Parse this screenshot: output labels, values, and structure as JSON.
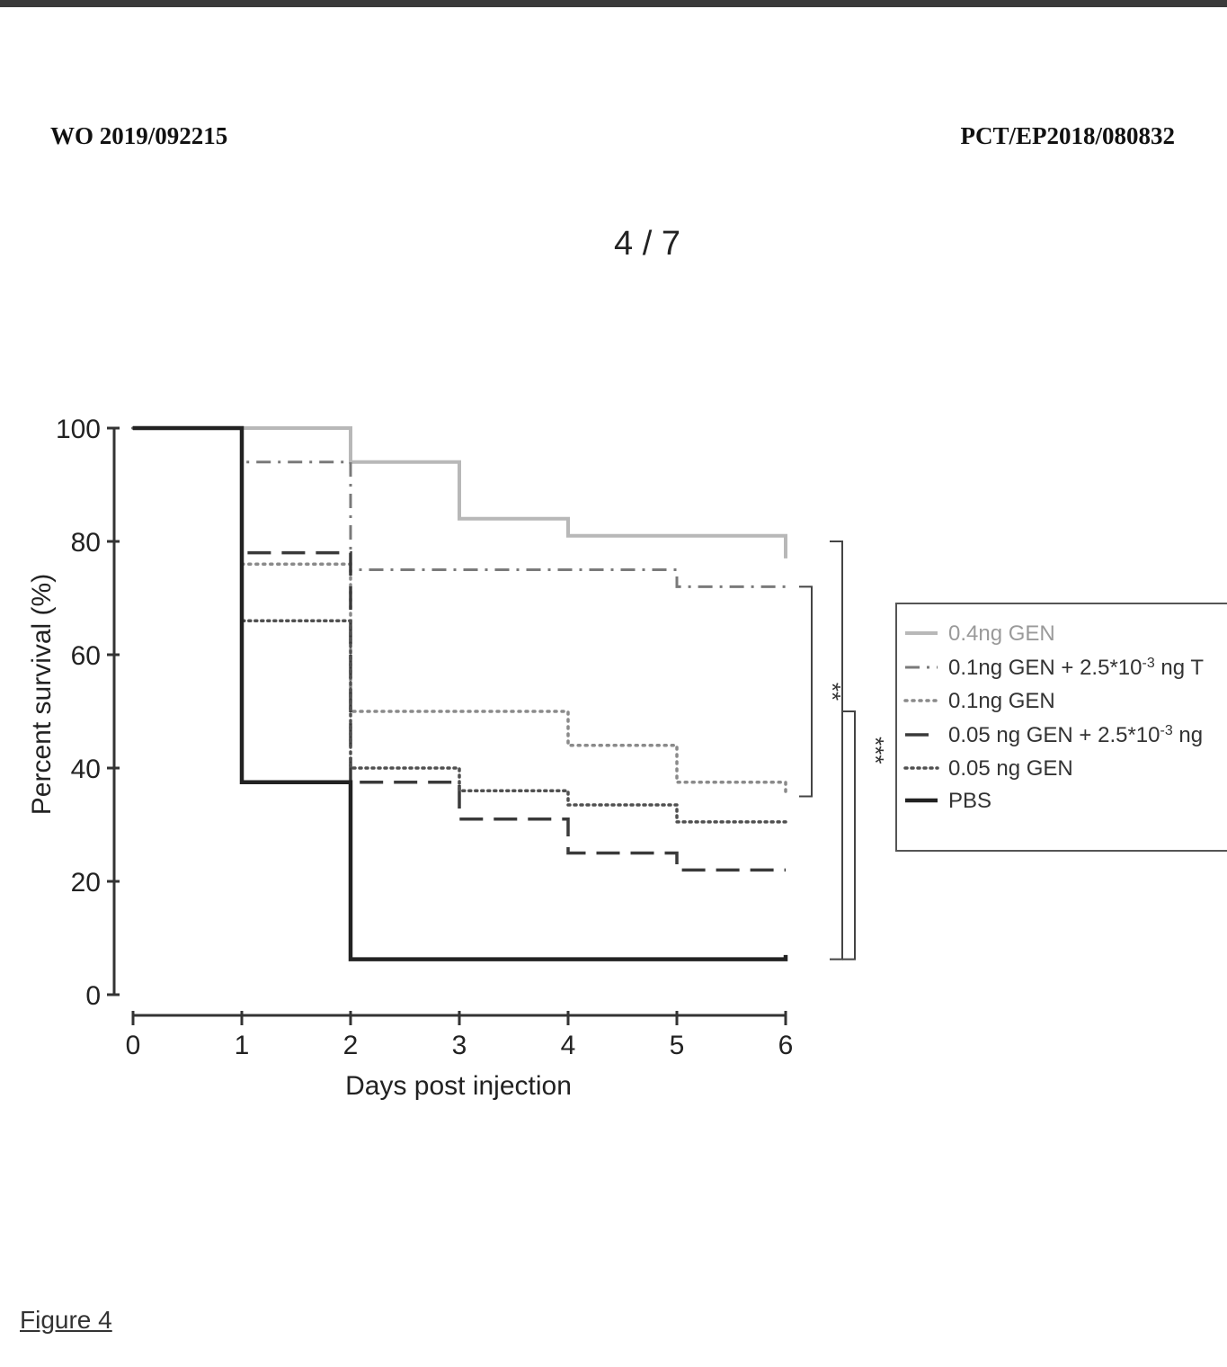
{
  "header": {
    "left": "WO 2019/092215",
    "right": "PCT/EP2018/080832",
    "page": "4 / 7"
  },
  "figure_caption": "Figure 4",
  "chart_data": {
    "type": "line",
    "step": true,
    "title": "",
    "xlabel": "Days post injection",
    "ylabel": "Percent survival (%)",
    "xlim": [
      0,
      6
    ],
    "ylim": [
      0,
      100
    ],
    "x_ticks": [
      "0",
      "1",
      "2",
      "3",
      "4",
      "5",
      "6"
    ],
    "y_ticks": [
      "0",
      "20",
      "40",
      "60",
      "80",
      "100"
    ],
    "legend_position": "right",
    "series": [
      {
        "name": "0.4ng GEN",
        "style": "solid",
        "color": "#b8b8b8",
        "points": [
          [
            0,
            100
          ],
          [
            2,
            100
          ],
          [
            2,
            94
          ],
          [
            3,
            94
          ],
          [
            3,
            84
          ],
          [
            4,
            84
          ],
          [
            4,
            81
          ],
          [
            6,
            81
          ],
          [
            6,
            77
          ]
        ]
      },
      {
        "name": "0.1ng GEN + 2.5*10",
        "name_sup": "-3",
        "name_suffix": " ng T",
        "style": "dashdot",
        "color": "#7a7a7a",
        "points": [
          [
            0,
            100
          ],
          [
            1,
            100
          ],
          [
            1,
            94
          ],
          [
            2,
            94
          ],
          [
            2,
            75
          ],
          [
            5,
            75
          ],
          [
            5,
            72
          ],
          [
            6,
            72
          ]
        ]
      },
      {
        "name": "0.1ng GEN",
        "style": "dotted",
        "color": "#8a8a8a",
        "points": [
          [
            0,
            100
          ],
          [
            1,
            100
          ],
          [
            1,
            76
          ],
          [
            2,
            76
          ],
          [
            2,
            50
          ],
          [
            4,
            50
          ],
          [
            4,
            44
          ],
          [
            5,
            44
          ],
          [
            5,
            37.5
          ],
          [
            6,
            37.5
          ],
          [
            6,
            35
          ]
        ]
      },
      {
        "name": "0.05 ng GEN + 2.5*10",
        "name_sup": "-3",
        "name_suffix": " ng",
        "style": "dashed",
        "color": "#3a3a3a",
        "points": [
          [
            0,
            100
          ],
          [
            1,
            100
          ],
          [
            1,
            78
          ],
          [
            2,
            78
          ],
          [
            2,
            37.5
          ],
          [
            3,
            37.5
          ],
          [
            3,
            31
          ],
          [
            4,
            31
          ],
          [
            4,
            25
          ],
          [
            5,
            25
          ],
          [
            5,
            22
          ],
          [
            6,
            22
          ]
        ]
      },
      {
        "name": "0.05 ng GEN",
        "style": "dotted-dense",
        "color": "#505050",
        "points": [
          [
            0,
            100
          ],
          [
            1,
            100
          ],
          [
            1,
            66
          ],
          [
            2,
            66
          ],
          [
            2,
            40
          ],
          [
            3,
            40
          ],
          [
            3,
            36
          ],
          [
            4,
            36
          ],
          [
            4,
            33.5
          ],
          [
            5,
            33.5
          ],
          [
            5,
            30.5
          ],
          [
            6,
            30.5
          ]
        ]
      },
      {
        "name": "PBS",
        "style": "solid-bold",
        "color": "#222222",
        "points": [
          [
            0,
            100
          ],
          [
            1,
            100
          ],
          [
            1,
            37.5
          ],
          [
            2,
            37.5
          ],
          [
            2,
            6.25
          ],
          [
            6,
            6.25
          ],
          [
            6,
            7
          ]
        ]
      }
    ],
    "annotations": [
      {
        "label": "**",
        "from_y": 72,
        "to_y": 35
      },
      {
        "label": "***",
        "from_y": 80,
        "to_y": 6.25
      }
    ]
  }
}
